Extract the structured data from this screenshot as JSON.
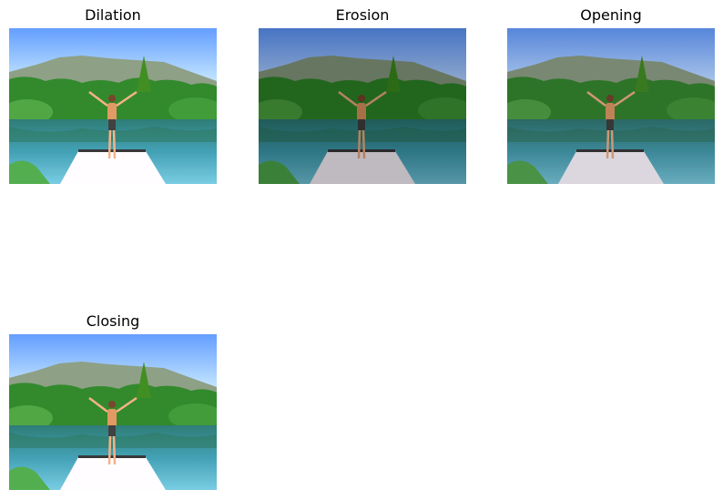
{
  "panels": [
    {
      "title": "Dilation",
      "variant": "bright"
    },
    {
      "title": "Erosion",
      "variant": "dark"
    },
    {
      "title": "Opening",
      "variant": "mid"
    },
    {
      "title": "Closing",
      "variant": "bright"
    }
  ],
  "colors": {
    "sky_top": "#5b8de6",
    "sky_bottom": "#cfe4fa",
    "mountain": "#7f8f78",
    "forest": "#2f7a2a",
    "water": "#3f8fa0",
    "dock": "#e8e2ea"
  }
}
